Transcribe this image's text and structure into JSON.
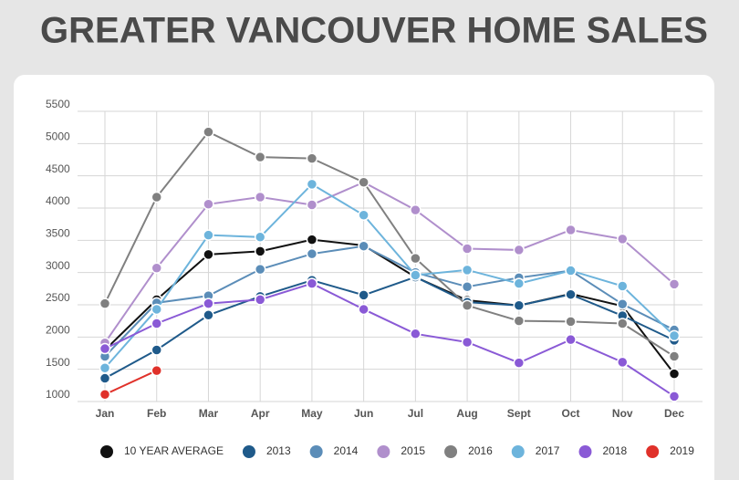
{
  "chart_data": {
    "type": "line",
    "title": "GREATER VANCOUVER HOME SALES",
    "categories": [
      "Jan",
      "Feb",
      "Mar",
      "Apr",
      "May",
      "Jun",
      "Jul",
      "Aug",
      "Sept",
      "Oct",
      "Nov",
      "Dec"
    ],
    "ylim": [
      1000,
      5500
    ],
    "yticks": [
      1000,
      1500,
      2000,
      2500,
      3000,
      3500,
      4000,
      4500,
      5000,
      5500
    ],
    "grid": true,
    "legend": "bottom",
    "series": [
      {
        "name": "10 YEAR AVERAGE",
        "color": "#111111",
        "values": [
          1800,
          2580,
          3280,
          3330,
          3510,
          3420,
          2930,
          2570,
          2490,
          2670,
          2480,
          1430
        ]
      },
      {
        "name": "2013",
        "color": "#1f5a8a",
        "values": [
          1360,
          1800,
          2340,
          2630,
          2880,
          2650,
          2930,
          2540,
          2490,
          2660,
          2330,
          1950
        ]
      },
      {
        "name": "2014",
        "color": "#5b8db8",
        "values": [
          1700,
          2530,
          2640,
          3050,
          3290,
          3410,
          3000,
          2780,
          2920,
          3030,
          2510,
          2110
        ]
      },
      {
        "name": "2015",
        "color": "#b08fcc",
        "values": [
          1910,
          3070,
          4060,
          4170,
          4050,
          4400,
          3970,
          3370,
          3350,
          3660,
          3520,
          2820
        ]
      },
      {
        "name": "2016",
        "color": "#808080",
        "values": [
          2520,
          4170,
          5180,
          4790,
          4770,
          4400,
          3220,
          2490,
          2250,
          2240,
          2210,
          1700
        ]
      },
      {
        "name": "2017",
        "color": "#6db4dc",
        "values": [
          1520,
          2430,
          3580,
          3550,
          4370,
          3890,
          2960,
          3040,
          2830,
          3030,
          2790,
          2020
        ]
      },
      {
        "name": "2018",
        "color": "#8a5ad6",
        "values": [
          1820,
          2210,
          2520,
          2580,
          2830,
          2430,
          2050,
          1920,
          1600,
          1960,
          1610,
          1080
        ]
      },
      {
        "name": "2019",
        "color": "#e0312a",
        "values": [
          1110,
          1480,
          null,
          null,
          null,
          null,
          null,
          null,
          null,
          null,
          null,
          null
        ]
      }
    ]
  }
}
